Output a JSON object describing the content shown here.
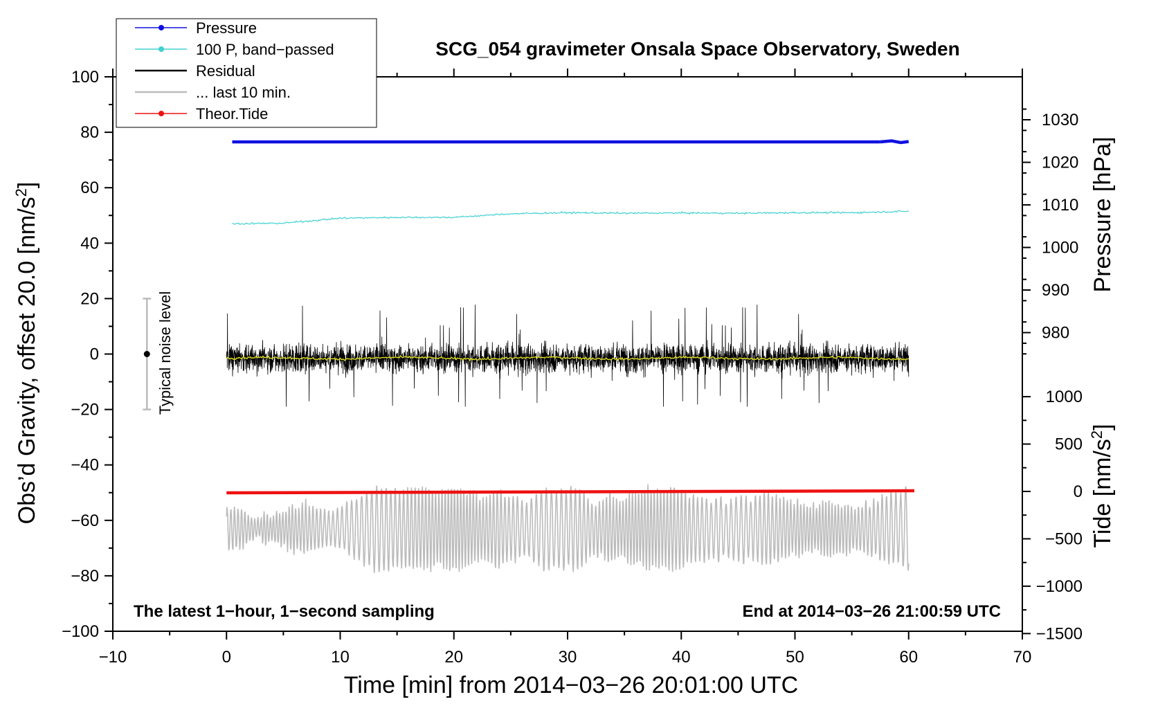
{
  "chart_data": {
    "type": "line",
    "title": "SCG_054 gravimeter Onsala Space Observatory, Sweden",
    "xlabel": "Time [min] from 2014−03−26 20:01:00 UTC",
    "ylabel_left": "Obs’d Gravity, offset 20.0 [nm/s",
    "ylabel_left_sup": "2",
    "ylabel_left_tail": "]",
    "ylabel_right_pressure": "Pressure [hPa]",
    "ylabel_right_tide": "Tide [nm/s",
    "ylabel_right_tide_sup": "2",
    "ylabel_right_tide_tail": "]",
    "xlim": [
      -10,
      70
    ],
    "ylim_left": [
      -100,
      100
    ],
    "x_ticks": [
      "−10",
      "0",
      "10",
      "20",
      "30",
      "40",
      "50",
      "60",
      "70"
    ],
    "y_left_ticks": [
      "100",
      "80",
      "60",
      "40",
      "20",
      "0",
      "−20",
      "−40",
      "−60",
      "−80",
      "−100"
    ],
    "pressure_ticks": [
      "1030",
      "1020",
      "1010",
      "1000",
      "990",
      "980"
    ],
    "tide_ticks": [
      "1000",
      "500",
      "0",
      "−500",
      "−1000",
      "−1500"
    ],
    "grid": false,
    "legend_position": "top-left",
    "legend": [
      {
        "label": "Pressure",
        "color": "#1010e0",
        "marker": true
      },
      {
        "label": "100 P, band−passed",
        "color": "#40d0d0",
        "marker": true
      },
      {
        "label": "Residual",
        "color": "#000000",
        "marker": false
      },
      {
        "label": "... last 10 min.",
        "color": "#bbbbbb",
        "marker": false
      },
      {
        "label": "Theor.Tide",
        "color": "#ee1111",
        "marker": true
      }
    ],
    "series": [
      {
        "name": "Pressure",
        "unit": "hPa",
        "x_range": [
          0.5,
          60
        ],
        "level": 1024.8,
        "color": "#1010e0"
      },
      {
        "name": "100 P, band−passed",
        "unit": "nm/s2",
        "x": [
          0.5,
          5,
          10,
          15,
          20,
          25,
          30,
          35,
          40,
          45,
          50,
          55,
          60
        ],
        "y": [
          47,
          47.2,
          49,
          49.3,
          49.3,
          50.6,
          51,
          50.8,
          50.9,
          50.8,
          51,
          51,
          51.5
        ],
        "color": "#40d0d0"
      },
      {
        "name": "Residual",
        "unit": "nm/s2",
        "x_range": [
          0,
          60
        ],
        "center": -1.5,
        "typical_half_range": 7,
        "extremes": [
          19,
          -19
        ],
        "color": "#000000"
      },
      {
        "name": "... last 10 min.",
        "unit": "nm/s2",
        "x_range": [
          0,
          60
        ],
        "center": -63,
        "range": [
          -79,
          -47
        ],
        "color": "#bbbbbb"
      },
      {
        "name": "Theor.Tide",
        "unit": "nm/s2",
        "x_range": [
          0,
          60.5
        ],
        "y_start": -15,
        "y_end": 7,
        "color": "#ee1111"
      }
    ],
    "annotations": {
      "noise_label": "Typical noise level",
      "noise_bar": {
        "x": -7,
        "center": 0,
        "low": -20,
        "high": 20
      },
      "bottom_left": "The latest 1−hour, 1−second sampling",
      "bottom_right": "End at 2014−03−26 21:00:59 UTC"
    }
  }
}
